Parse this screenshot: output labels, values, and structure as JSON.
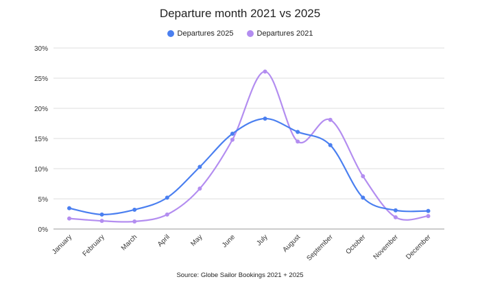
{
  "chart_data": {
    "type": "line",
    "title": "Departure month 2021 vs 2025",
    "categories": [
      "January",
      "February",
      "March",
      "April",
      "May",
      "June",
      "July",
      "August",
      "September",
      "October",
      "November",
      "December"
    ],
    "series": [
      {
        "name": "Departures 2025",
        "color": "#4a7ff0",
        "values": [
          3.45,
          2.4,
          3.2,
          5.2,
          10.3,
          15.8,
          18.3,
          16.1,
          13.9,
          5.2,
          3.1,
          3.0
        ]
      },
      {
        "name": "Departures 2021",
        "color": "#b38df0",
        "values": [
          1.75,
          1.35,
          1.25,
          2.4,
          6.7,
          14.8,
          26.1,
          14.5,
          18.1,
          8.75,
          1.95,
          2.15
        ]
      }
    ],
    "ylim": [
      0,
      30
    ],
    "yticks": [
      "0%",
      "5%",
      "10%",
      "15%",
      "20%",
      "25%",
      "30%"
    ],
    "xlabel": "",
    "ylabel": "",
    "grid": true,
    "legend": "top-center",
    "source": "Source: Globe Sailor Bookings 2021 + 2025"
  }
}
